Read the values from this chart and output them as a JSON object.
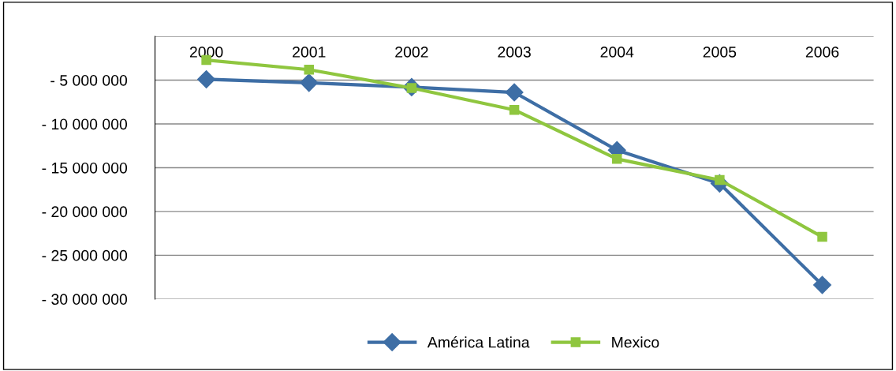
{
  "chart_data": {
    "type": "line",
    "categories": [
      "2000",
      "2001",
      "2002",
      "2003",
      "2004",
      "2005",
      "2006"
    ],
    "series": [
      {
        "name": "América Latina",
        "color": "#3e6ea5",
        "marker": "diamond",
        "values": [
          -4900000,
          -5300000,
          -5800000,
          -6400000,
          -13000000,
          -16800000,
          -28400000
        ]
      },
      {
        "name": "Mexico",
        "color": "#8fc63f",
        "marker": "square",
        "values": [
          -2700000,
          -3800000,
          -5900000,
          -8400000,
          -14000000,
          -16400000,
          -22900000
        ]
      }
    ],
    "ylim": [
      -30000000,
      0
    ],
    "yticks": [
      {
        "value": -30000000,
        "label": "- 30 000 000"
      },
      {
        "value": -25000000,
        "label": "- 25 000 000"
      },
      {
        "value": -20000000,
        "label": "- 20 000 000"
      },
      {
        "value": -15000000,
        "label": "- 15 000 000"
      },
      {
        "value": -10000000,
        "label": "- 10 000 000"
      },
      {
        "value": -5000000,
        "label": "- 5 000 000"
      },
      {
        "value": 0,
        "label": null
      }
    ],
    "grid": "y",
    "legend": "bottom",
    "line_style": "solid"
  }
}
